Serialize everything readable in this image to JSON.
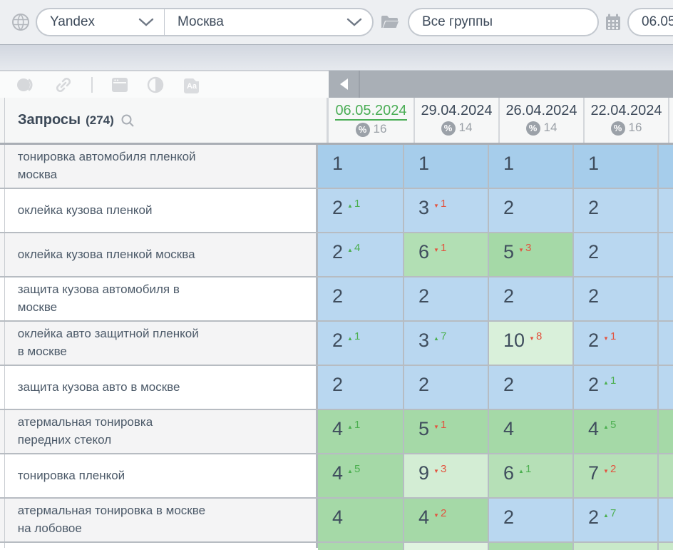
{
  "topbar": {
    "search_engine": "Yandex",
    "region": "Москва",
    "groups": "Все группы",
    "date": "06.05."
  },
  "toolbar": {
    "icons": [
      "target-icon",
      "link-icon",
      "window-icon",
      "contrast-icon",
      "font-icon"
    ],
    "font_icon_label": "Aa",
    "collapse_icon": "triangle-left"
  },
  "colors": {
    "selected_date_green": "#4aad55",
    "up_green": "#4caf50",
    "down_red": "#e2533f",
    "pos1_blue": "#a6cdeb",
    "pos23_blue": "#b9d7f0",
    "green_strong": "#a5d9a7",
    "green_mid": "#b6e0b7",
    "green_light": "#d3edd4"
  },
  "table": {
    "title": "Запросы",
    "count": "(274)",
    "percent_symbol": "%",
    "columns": [
      {
        "date": "06.05.2024",
        "count": "16",
        "selected": true
      },
      {
        "date": "29.04.2024",
        "count": "14",
        "selected": false
      },
      {
        "date": "26.04.2024",
        "count": "14",
        "selected": false
      },
      {
        "date": "22.04.2024",
        "count": "16",
        "selected": false
      }
    ],
    "rows": [
      {
        "query": "тонировка автомобиля пленкой\nмосква",
        "cells": [
          {
            "value": "1",
            "bg": "#a6cdeb"
          },
          {
            "value": "1",
            "bg": "#a6cdeb"
          },
          {
            "value": "1",
            "bg": "#a6cdeb"
          },
          {
            "value": "1",
            "bg": "#a6cdeb"
          }
        ],
        "edge_bg": "#a6cdeb"
      },
      {
        "query": "оклейка кузова пленкой",
        "cells": [
          {
            "value": "2",
            "change": "1",
            "dir": "up",
            "bg": "#b9d7f0"
          },
          {
            "value": "3",
            "change": "1",
            "dir": "down",
            "bg": "#b9d7f0"
          },
          {
            "value": "2",
            "bg": "#b9d7f0"
          },
          {
            "value": "2",
            "bg": "#b9d7f0"
          }
        ],
        "edge_bg": "#b9d7f0"
      },
      {
        "query": "оклейка кузова пленкой москва",
        "cells": [
          {
            "value": "2",
            "change": "4",
            "dir": "up",
            "bg": "#b9d7f0"
          },
          {
            "value": "6",
            "change": "1",
            "dir": "down",
            "bg": "#b2dfb4"
          },
          {
            "value": "5",
            "change": "3",
            "dir": "down",
            "bg": "#a5d9a7"
          },
          {
            "value": "2",
            "bg": "#b9d7f0"
          }
        ],
        "edge_bg": "#b9d7f0"
      },
      {
        "query": "защита кузова автомобиля в\nмоскве",
        "cells": [
          {
            "value": "2",
            "bg": "#b9d7f0"
          },
          {
            "value": "2",
            "bg": "#b9d7f0"
          },
          {
            "value": "2",
            "bg": "#b9d7f0"
          },
          {
            "value": "2",
            "bg": "#b9d7f0"
          }
        ],
        "edge_bg": "#b9d7f0"
      },
      {
        "query": "оклейка авто защитной пленкой\nв москве",
        "cells": [
          {
            "value": "2",
            "change": "1",
            "dir": "up",
            "bg": "#b9d7f0"
          },
          {
            "value": "3",
            "change": "7",
            "dir": "up",
            "bg": "#b9d7f0"
          },
          {
            "value": "10",
            "change": "8",
            "dir": "down",
            "bg": "#d9f0da"
          },
          {
            "value": "2",
            "change": "1",
            "dir": "down",
            "bg": "#b9d7f0"
          }
        ],
        "edge_bg": "#b9d7f0"
      },
      {
        "query": "защита кузова авто в москве",
        "cells": [
          {
            "value": "2",
            "bg": "#b9d7f0"
          },
          {
            "value": "2",
            "bg": "#b9d7f0"
          },
          {
            "value": "2",
            "bg": "#b9d7f0"
          },
          {
            "value": "2",
            "change": "1",
            "dir": "up",
            "bg": "#b9d7f0"
          }
        ],
        "edge_bg": "#b9d7f0"
      },
      {
        "query": "атермальная тонировка\nпередних стекол",
        "cells": [
          {
            "value": "4",
            "change": "1",
            "dir": "up",
            "bg": "#a5d9a7"
          },
          {
            "value": "5",
            "change": "1",
            "dir": "down",
            "bg": "#a5d9a7"
          },
          {
            "value": "4",
            "bg": "#a5d9a7"
          },
          {
            "value": "4",
            "change": "5",
            "dir": "up",
            "bg": "#a5d9a7"
          }
        ],
        "edge_bg": "#a5d9a7"
      },
      {
        "query": "тонировка пленкой",
        "cells": [
          {
            "value": "4",
            "change": "5",
            "dir": "up",
            "bg": "#a5d9a7"
          },
          {
            "value": "9",
            "change": "3",
            "dir": "down",
            "bg": "#d3edd4"
          },
          {
            "value": "6",
            "change": "1",
            "dir": "up",
            "bg": "#b6e0b7"
          },
          {
            "value": "7",
            "change": "2",
            "dir": "down",
            "bg": "#b6e0b7"
          }
        ],
        "edge_bg": "#b6e0b7"
      },
      {
        "query": "атермальная тонировка в москве\nна лобовое",
        "cells": [
          {
            "value": "4",
            "bg": "#a5d9a7"
          },
          {
            "value": "4",
            "change": "2",
            "dir": "down",
            "bg": "#a5d9a7"
          },
          {
            "value": "2",
            "bg": "#b9d7f0"
          },
          {
            "value": "2",
            "change": "7",
            "dir": "up",
            "bg": "#b9d7f0"
          }
        ],
        "edge_bg": "#b9d7f0"
      }
    ],
    "partial_row": {
      "bgs": [
        "#a9dbaa",
        "#e0f3e0",
        "#a9dbaa",
        "#c9e9c9"
      ],
      "edge_bg": "#c9e9c9"
    }
  }
}
